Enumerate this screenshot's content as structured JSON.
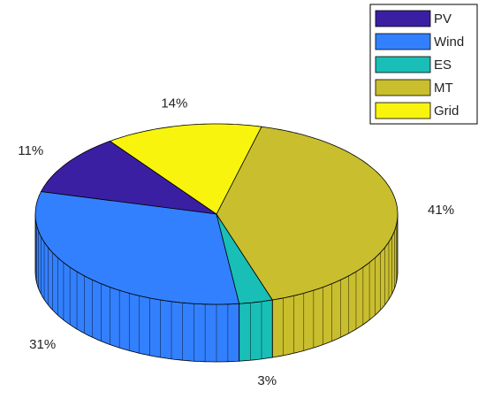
{
  "chart_data": {
    "type": "pie",
    "categories": [
      "PV",
      "Wind",
      "ES",
      "MT",
      "Grid"
    ],
    "values": [
      11,
      31,
      3,
      41,
      14
    ],
    "value_labels": [
      "11%",
      "31%",
      "3%",
      "41%",
      "14%"
    ],
    "colors": [
      "#3b1fa3",
      "#3380ff",
      "#19bfb7",
      "#c9be2e",
      "#f9f40e"
    ],
    "legend": "northeast"
  }
}
